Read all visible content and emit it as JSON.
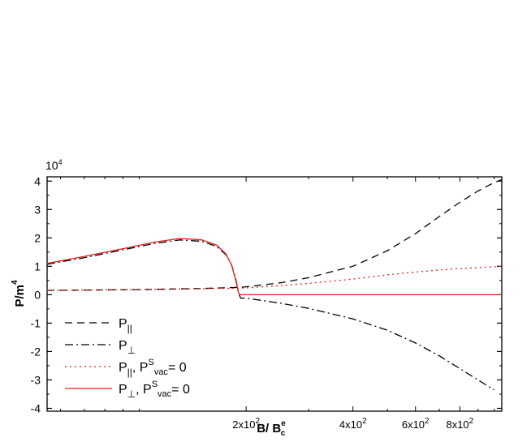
{
  "chart_data": {
    "type": "line",
    "xlabel": {
      "main": "B/ B",
      "sup": "e",
      "sub": "c"
    },
    "ylabel": {
      "main": "P/m",
      "sup": "4"
    },
    "y_multiplier": "10",
    "y_multiplier_exp": "4",
    "x_scale": "log",
    "xlim": [
      55,
      1050
    ],
    "ylim": [
      -4.1,
      4.15
    ],
    "yticks": [
      -4,
      -3,
      -2,
      -1,
      0,
      1,
      2,
      3,
      4
    ],
    "ytick_labels": [
      "-4",
      "-3",
      "-2",
      "-1",
      "0",
      "1",
      "2",
      "3",
      "4"
    ],
    "xticks": [
      {
        "value": 200,
        "label": "2x10",
        "exp": "2"
      },
      {
        "value": 400,
        "label": "4x10",
        "exp": "2"
      },
      {
        "value": 600,
        "label": "6x10",
        "exp": "2"
      },
      {
        "value": 800,
        "label": "8x10",
        "exp": "2"
      }
    ],
    "grid": false,
    "legend_position": "bottom-left",
    "series": [
      {
        "name": "P||",
        "legend": {
          "main": "P",
          "sub": "||",
          "extra": ""
        },
        "color": "#000000",
        "dash": "9,6",
        "x": [
          55,
          100,
          150,
          193,
          200,
          250,
          300,
          400,
          500,
          600,
          700,
          800,
          900,
          1000,
          1050
        ],
        "y": [
          0.15,
          0.18,
          0.22,
          0.26,
          0.28,
          0.42,
          0.6,
          1.0,
          1.55,
          2.15,
          2.75,
          3.25,
          3.65,
          3.95,
          4.05
        ]
      },
      {
        "name": "P⊥",
        "legend": {
          "main": "P",
          "sub": "⊥",
          "extra": ""
        },
        "color": "#000000",
        "dash": "10,4,2,4",
        "x": [
          55,
          70,
          90,
          110,
          130,
          150,
          165,
          175,
          182,
          187,
          190,
          192,
          193,
          200,
          250,
          300,
          400,
          500,
          600,
          700,
          800,
          900,
          1000
        ],
        "y": [
          1.07,
          1.3,
          1.58,
          1.8,
          1.93,
          1.88,
          1.7,
          1.42,
          1.05,
          0.55,
          0.1,
          -0.05,
          -0.12,
          -0.12,
          -0.3,
          -0.48,
          -0.85,
          -1.25,
          -1.7,
          -2.15,
          -2.6,
          -3.0,
          -3.35
        ]
      },
      {
        "name": "P||, Psvac= 0",
        "legend": {
          "main": "P",
          "sub": "||",
          "extra": ", P",
          "extra_sup": "S",
          "extra_sub": "vac",
          "tail": "= 0"
        },
        "color": "#e8201e",
        "dash": "2,4",
        "x": [
          55,
          100,
          150,
          193,
          200,
          250,
          300,
          400,
          500,
          600,
          700,
          800,
          900,
          1000,
          1050
        ],
        "y": [
          0.15,
          0.18,
          0.21,
          0.23,
          0.24,
          0.32,
          0.4,
          0.55,
          0.7,
          0.8,
          0.87,
          0.92,
          0.95,
          0.98,
          1.0
        ]
      },
      {
        "name": "P⊥, Psvac= 0",
        "legend": {
          "main": "P",
          "sub": "⊥",
          "extra": ", P",
          "extra_sup": "S",
          "extra_sub": "vac",
          "tail": "= 0"
        },
        "color": "#e8201e",
        "dash": "",
        "x": [
          55,
          70,
          90,
          110,
          130,
          150,
          165,
          175,
          182,
          187,
          190,
          192,
          193,
          200,
          300,
          500,
          800,
          1050
        ],
        "y": [
          1.1,
          1.35,
          1.62,
          1.85,
          1.98,
          1.93,
          1.75,
          1.45,
          1.05,
          0.5,
          0.1,
          0.0,
          0.0,
          0.0,
          0.0,
          0.0,
          0.0,
          0.0
        ]
      }
    ]
  }
}
